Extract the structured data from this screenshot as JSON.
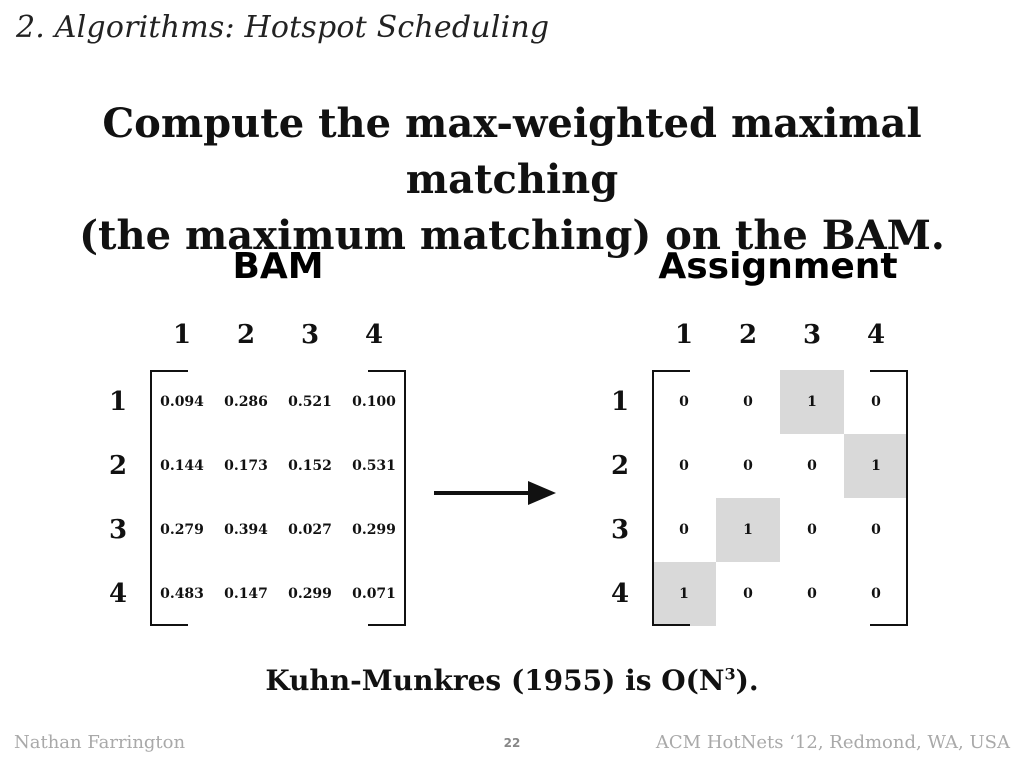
{
  "section_title": "2. Algorithms: Hotspot Scheduling",
  "headline": {
    "line1": "Compute the max-weighted maximal matching",
    "line2": "(the maximum matching) on the BAM."
  },
  "bam": {
    "title": "BAM",
    "col_labels": [
      "1",
      "2",
      "3",
      "4"
    ],
    "row_labels": [
      "1",
      "2",
      "3",
      "4"
    ],
    "rows": [
      [
        "0.094",
        "0.286",
        "0.521",
        "0.100"
      ],
      [
        "0.144",
        "0.173",
        "0.152",
        "0.531"
      ],
      [
        "0.279",
        "0.394",
        "0.027",
        "0.299"
      ],
      [
        "0.483",
        "0.147",
        "0.299",
        "0.071"
      ]
    ]
  },
  "assignment": {
    "title": "Assignment",
    "col_labels": [
      "1",
      "2",
      "3",
      "4"
    ],
    "row_labels": [
      "1",
      "2",
      "3",
      "4"
    ],
    "rows": [
      [
        "0",
        "0",
        "1",
        "0"
      ],
      [
        "0",
        "0",
        "0",
        "1"
      ],
      [
        "0",
        "1",
        "0",
        "0"
      ],
      [
        "1",
        "0",
        "0",
        "0"
      ]
    ],
    "highlight_color": "#d9d9d9"
  },
  "complexity": {
    "text": "Kuhn-Munkres (1955) is O(N",
    "exponent": "3",
    "suffix": ")."
  },
  "footer": {
    "left": "Nathan Farrington",
    "page": "22",
    "right": "ACM HotNets ‘12, Redmond, WA, USA"
  }
}
